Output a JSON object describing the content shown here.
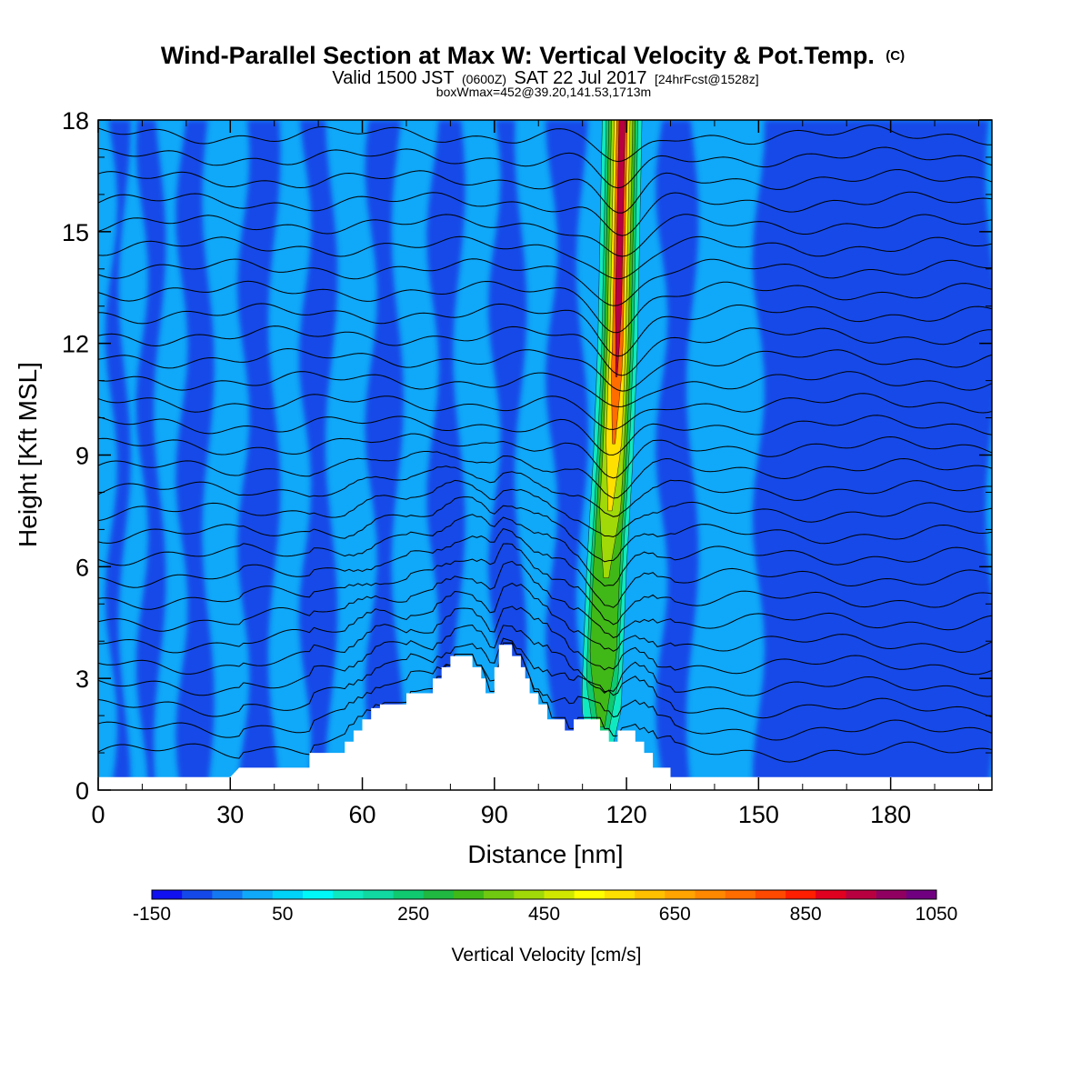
{
  "header": {
    "title": "Wind-Parallel Section at Max W: Vertical Velocity & Pot.Temp.",
    "title_mark": "(C)",
    "subtitle_a": "Valid 1500 JST",
    "subtitle_b": "(0600Z)",
    "subtitle_c": "SAT 22 Jul 2017",
    "subtitle_d": "[24hrFcst@1528z]",
    "subtitle2": "boxWmax=452@39.20,141.53,1713m"
  },
  "chart_data": {
    "type": "heatmap",
    "title": "Wind-Parallel Section at Max W: Vertical Velocity & Pot.Temp.",
    "xlabel": "Distance [nm]",
    "ylabel": "Height [Kft MSL]",
    "xlim": [
      0,
      203
    ],
    "ylim": [
      0,
      18
    ],
    "xticks": [
      0,
      30,
      60,
      90,
      120,
      150,
      180
    ],
    "yticks": [
      0,
      3,
      6,
      9,
      12,
      15,
      18
    ],
    "xticks_minor": [
      10,
      20,
      40,
      50,
      70,
      80,
      100,
      110,
      130,
      140,
      160,
      170,
      190,
      200
    ],
    "yticks_minor": [
      1,
      2,
      4,
      5,
      7,
      8,
      10,
      11,
      13,
      14,
      16,
      17
    ],
    "background_w": 20,
    "downdraft_bands": [
      {
        "x0": 3,
        "x1": 6,
        "w": -60
      },
      {
        "x0": 10,
        "x1": 14,
        "w": -60
      },
      {
        "x0": 19,
        "x1": 25,
        "w": -60
      },
      {
        "x0": 33,
        "x1": 40,
        "w": -60
      },
      {
        "x0": 47,
        "x1": 53,
        "w": -60
      },
      {
        "x0": 62,
        "x1": 68,
        "w": -60
      },
      {
        "x0": 76,
        "x1": 82,
        "w": -60
      },
      {
        "x0": 90,
        "x1": 96,
        "w": -60
      },
      {
        "x0": 103,
        "x1": 110,
        "w": -60
      },
      {
        "x0": 128,
        "x1": 135,
        "w": -60
      },
      {
        "x0": 150,
        "x1": 203,
        "w": -60
      }
    ],
    "updraft_core": {
      "description_none": "",
      "axis": [
        [
          114,
          0.3
        ],
        [
          114.5,
          3
        ],
        [
          115.5,
          6
        ],
        [
          117,
          9
        ],
        [
          118,
          12
        ],
        [
          118.5,
          15
        ],
        [
          119,
          18
        ]
      ],
      "levels_w": [
        150,
        250,
        350,
        450,
        600,
        800,
        1000
      ],
      "halfwidth_nm": [
        4.5,
        3.6,
        3.0,
        2.4,
        1.8,
        1.2,
        0.7
      ]
    },
    "terrain_kft": [
      [
        0,
        0.35
      ],
      [
        30,
        0.35
      ],
      [
        32,
        0.6
      ],
      [
        48,
        0.6
      ],
      [
        48,
        1.0
      ],
      [
        56,
        1.0
      ],
      [
        56,
        1.3
      ],
      [
        58,
        1.3
      ],
      [
        58,
        1.6
      ],
      [
        60,
        1.6
      ],
      [
        60,
        1.9
      ],
      [
        62,
        1.9
      ],
      [
        62,
        2.2
      ],
      [
        64,
        2.2
      ],
      [
        64,
        2.3
      ],
      [
        70,
        2.3
      ],
      [
        70,
        2.6
      ],
      [
        76,
        2.6
      ],
      [
        76,
        3.0
      ],
      [
        78,
        3.0
      ],
      [
        78,
        3.3
      ],
      [
        80,
        3.3
      ],
      [
        80,
        3.6
      ],
      [
        85,
        3.6
      ],
      [
        85,
        3.3
      ],
      [
        87,
        3.3
      ],
      [
        87,
        3.0
      ],
      [
        88,
        3.0
      ],
      [
        88,
        2.6
      ],
      [
        90,
        2.6
      ],
      [
        90,
        3.3
      ],
      [
        91,
        3.3
      ],
      [
        91,
        3.9
      ],
      [
        94,
        3.9
      ],
      [
        94,
        3.6
      ],
      [
        96,
        3.6
      ],
      [
        96,
        3.3
      ],
      [
        97,
        3.3
      ],
      [
        97,
        3.0
      ],
      [
        98,
        3.0
      ],
      [
        98,
        2.6
      ],
      [
        100,
        2.6
      ],
      [
        100,
        2.3
      ],
      [
        102,
        2.3
      ],
      [
        102,
        1.9
      ],
      [
        106,
        1.9
      ],
      [
        106,
        1.6
      ],
      [
        108,
        1.6
      ],
      [
        108,
        1.9
      ],
      [
        114,
        1.9
      ],
      [
        114,
        1.6
      ],
      [
        116,
        1.6
      ],
      [
        116,
        1.3
      ],
      [
        118,
        1.3
      ],
      [
        118,
        1.6
      ],
      [
        122,
        1.6
      ],
      [
        122,
        1.3
      ],
      [
        124,
        1.3
      ],
      [
        124,
        1.0
      ],
      [
        126,
        1.0
      ],
      [
        126,
        0.6
      ],
      [
        130,
        0.6
      ],
      [
        130,
        0.35
      ],
      [
        203,
        0.35
      ]
    ],
    "isentrope_levels_kft": [
      0.8,
      1.4,
      2.0,
      2.6,
      3.2,
      3.8,
      4.4,
      5.0,
      5.6,
      6.2,
      6.8,
      7.4,
      8.0,
      8.6,
      9.2,
      9.8,
      10.4,
      11.0,
      11.6,
      12.2,
      12.8,
      13.4,
      14.0,
      14.6,
      15.2,
      15.8,
      16.4,
      17.0,
      17.6
    ],
    "colorbar": {
      "label": "Vertical Velocity [cm/s]",
      "min": -150,
      "max": 1050,
      "step": 50,
      "tick_labels": [
        "-150",
        "50",
        "250",
        "450",
        "650",
        "850",
        "1050"
      ],
      "colors": [
        "#1010f0",
        "#1448e8",
        "#1478f0",
        "#10a8f8",
        "#00d2f8",
        "#00f8f8",
        "#10e8c0",
        "#10d8a0",
        "#10c870",
        "#20b840",
        "#40b818",
        "#70c810",
        "#a0d808",
        "#d0e800",
        "#ffff00",
        "#ffe000",
        "#ffc000",
        "#ffa400",
        "#ff8800",
        "#ff6c00",
        "#ff4800",
        "#ff1e00",
        "#e00020",
        "#b80040",
        "#900060",
        "#700080"
      ]
    }
  }
}
